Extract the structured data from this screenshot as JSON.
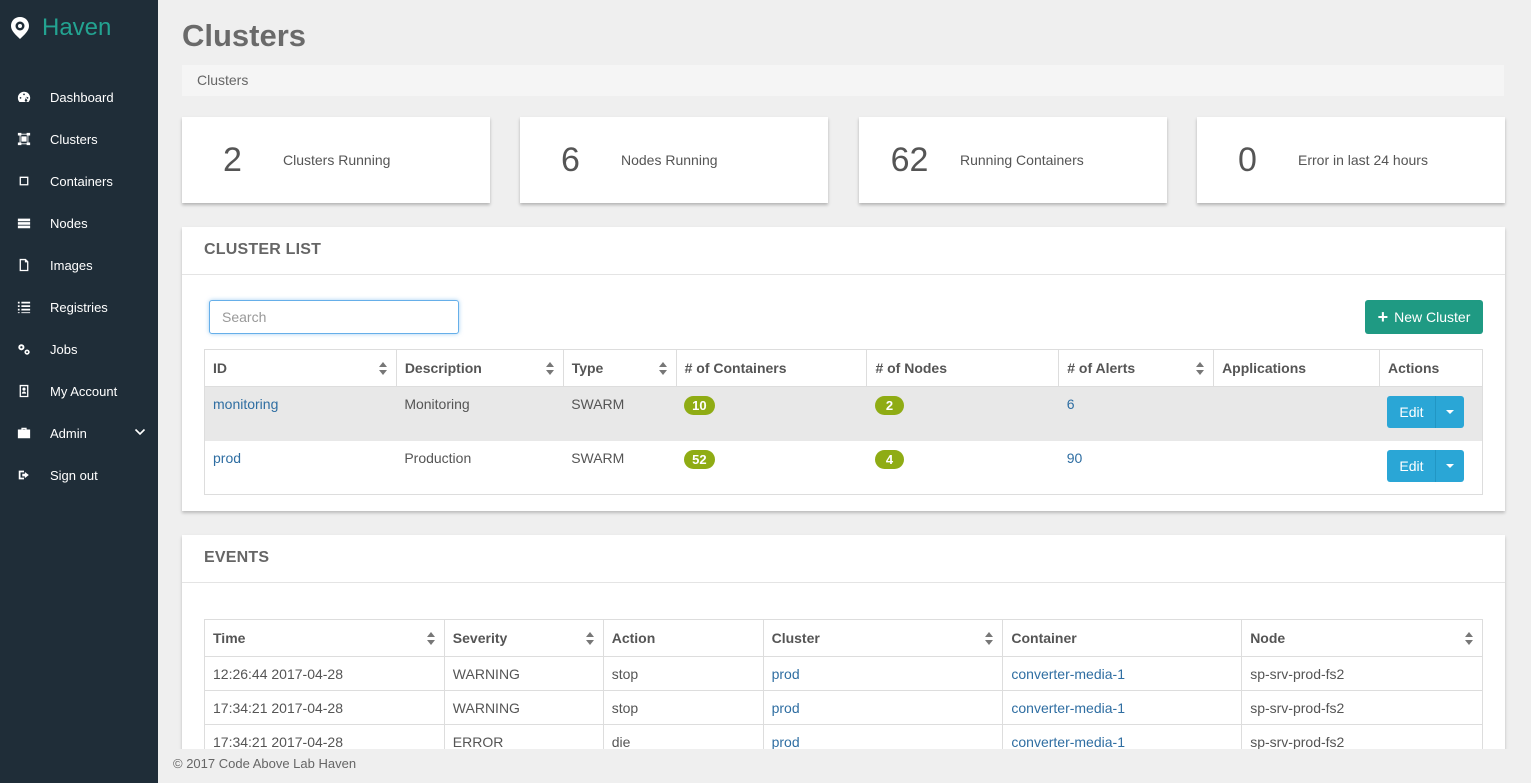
{
  "app": {
    "name": "Haven"
  },
  "sidebar": {
    "items": [
      {
        "label": "Dashboard",
        "icon": "dashboard-icon"
      },
      {
        "label": "Clusters",
        "icon": "clusters-icon"
      },
      {
        "label": "Containers",
        "icon": "containers-icon"
      },
      {
        "label": "Nodes",
        "icon": "nodes-icon"
      },
      {
        "label": "Images",
        "icon": "images-icon"
      },
      {
        "label": "Registries",
        "icon": "registries-icon"
      },
      {
        "label": "Jobs",
        "icon": "jobs-icon"
      },
      {
        "label": "My Account",
        "icon": "account-icon"
      },
      {
        "label": "Admin",
        "icon": "admin-icon"
      },
      {
        "label": "Sign out",
        "icon": "sign-out-icon"
      }
    ]
  },
  "page": {
    "title": "Clusters",
    "breadcrumb": "Clusters"
  },
  "stats": [
    {
      "value": "2",
      "label": "Clusters Running"
    },
    {
      "value": "6",
      "label": "Nodes Running"
    },
    {
      "value": "62",
      "label": "Running Containers"
    },
    {
      "value": "0",
      "label": "Error in last 24 hours"
    }
  ],
  "cluster_list": {
    "title": "CLUSTER LIST",
    "search_placeholder": "Search",
    "new_button": "New Cluster",
    "columns": [
      "ID",
      "Description",
      "Type",
      "# of Containers",
      "# of Nodes",
      "# of Alerts",
      "Applications",
      "Actions"
    ],
    "rows": [
      {
        "id": "monitoring",
        "description": "Monitoring",
        "type": "SWARM",
        "containers": "10",
        "nodes": "2",
        "alerts": "6",
        "applications": "",
        "action": "Edit"
      },
      {
        "id": "prod",
        "description": "Production",
        "type": "SWARM",
        "containers": "52",
        "nodes": "4",
        "alerts": "90",
        "applications": "",
        "action": "Edit"
      }
    ]
  },
  "events": {
    "title": "EVENTS",
    "columns": [
      "Time",
      "Severity",
      "Action",
      "Cluster",
      "Container",
      "Node"
    ],
    "rows": [
      {
        "time": "12:26:44 2017-04-28",
        "severity": "WARNING",
        "action": "stop",
        "cluster": "prod",
        "container": "converter-media-1",
        "node": "sp-srv-prod-fs2"
      },
      {
        "time": "17:34:21 2017-04-28",
        "severity": "WARNING",
        "action": "stop",
        "cluster": "prod",
        "container": "converter-media-1",
        "node": "sp-srv-prod-fs2"
      },
      {
        "time": "17:34:21 2017-04-28",
        "severity": "ERROR",
        "action": "die",
        "cluster": "prod",
        "container": "converter-media-1",
        "node": "sp-srv-prod-fs2"
      }
    ]
  },
  "footer": {
    "text": "© 2017 Code Above Lab Haven"
  },
  "colors": {
    "sidebar": "#1f2d38",
    "brand": "#23a391",
    "primary": "#1f9a83",
    "link": "#2f6ea2",
    "badge": "#8fac14",
    "edit": "#2aa6d6"
  }
}
